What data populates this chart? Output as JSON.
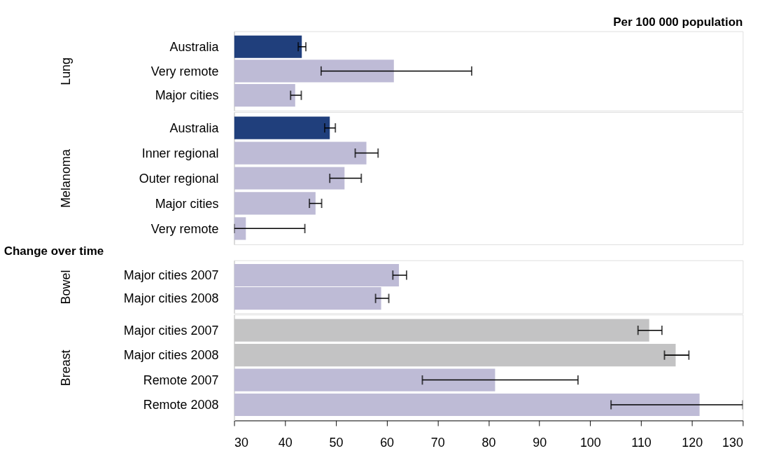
{
  "chart_data": [
    {
      "type": "bar",
      "orientation": "horizontal",
      "title": "Per 100 000 population",
      "ylabel": "Lung",
      "categories": [
        "Australia",
        "Very remote",
        "Major cities"
      ],
      "values": [
        43.3,
        61.4,
        42.0
      ],
      "colors": [
        "#203f7c",
        "#bebbd6",
        "#bebbd6"
      ],
      "errors": [
        [
          42.6,
          44.1
        ],
        [
          47.1,
          76.7
        ],
        [
          41.1,
          43.2
        ]
      ],
      "xlim": [
        30,
        130
      ],
      "xticks": [
        30,
        40,
        50,
        60,
        70,
        80,
        90,
        100,
        110,
        120,
        130
      ],
      "tick_labels": "y",
      "grid": false
    },
    {
      "type": "bar",
      "orientation": "horizontal",
      "ylabel": "Melanoma",
      "categories": [
        "Australia",
        "Inner regional",
        "Outer regional",
        "Major cities",
        "Very remote"
      ],
      "values": [
        48.8,
        56.0,
        51.7,
        46.0,
        32.3
      ],
      "colors": [
        "#203f7c",
        "#bebbd6",
        "#bebbd6",
        "#bebbd6",
        "#bebbd6"
      ],
      "errors": [
        [
          47.8,
          49.9
        ],
        [
          53.8,
          58.3
        ],
        [
          48.8,
          55.0
        ],
        [
          44.8,
          47.2
        ],
        [
          30,
          43.9
        ]
      ],
      "xlim": [
        30,
        130
      ],
      "xticks": [
        30,
        40,
        50,
        60,
        70,
        80,
        90,
        100,
        110,
        120,
        130
      ],
      "tick_labels": "y",
      "grid": false
    },
    {
      "type": "bar",
      "orientation": "horizontal",
      "title": "Change over time",
      "ylabel": "Bowel",
      "categories": [
        "Major cities 2007",
        "Major cities 2008"
      ],
      "values": [
        62.4,
        58.9
      ],
      "colors": [
        "#bebbd6",
        "#bebbd6"
      ],
      "errors": [
        [
          61.2,
          63.9
        ],
        [
          57.8,
          60.4
        ]
      ],
      "xlim": [
        30,
        130
      ],
      "xticks": [
        30,
        40,
        50,
        60,
        70,
        80,
        90,
        100,
        110,
        120,
        130
      ],
      "tick_labels": "y",
      "grid": false
    },
    {
      "type": "bar",
      "orientation": "horizontal",
      "ylabel": "Breast",
      "categories": [
        "Major cities 2007",
        "Major cities 2008",
        "Remote 2007",
        "Remote 2008"
      ],
      "values": [
        111.6,
        116.8,
        81.3,
        121.5
      ],
      "colors": [
        "#c3c3c4",
        "#c3c3c4",
        "#bebbd6",
        "#bebbd6"
      ],
      "errors": [
        [
          109.4,
          114.1
        ],
        [
          114.6,
          119.4
        ],
        [
          67.0,
          97.6
        ],
        [
          104.1,
          130
        ]
      ],
      "xlim": [
        30,
        130
      ],
      "xticks": [
        30,
        40,
        50,
        60,
        70,
        80,
        90,
        100,
        110,
        120,
        130
      ],
      "grid": false
    }
  ]
}
